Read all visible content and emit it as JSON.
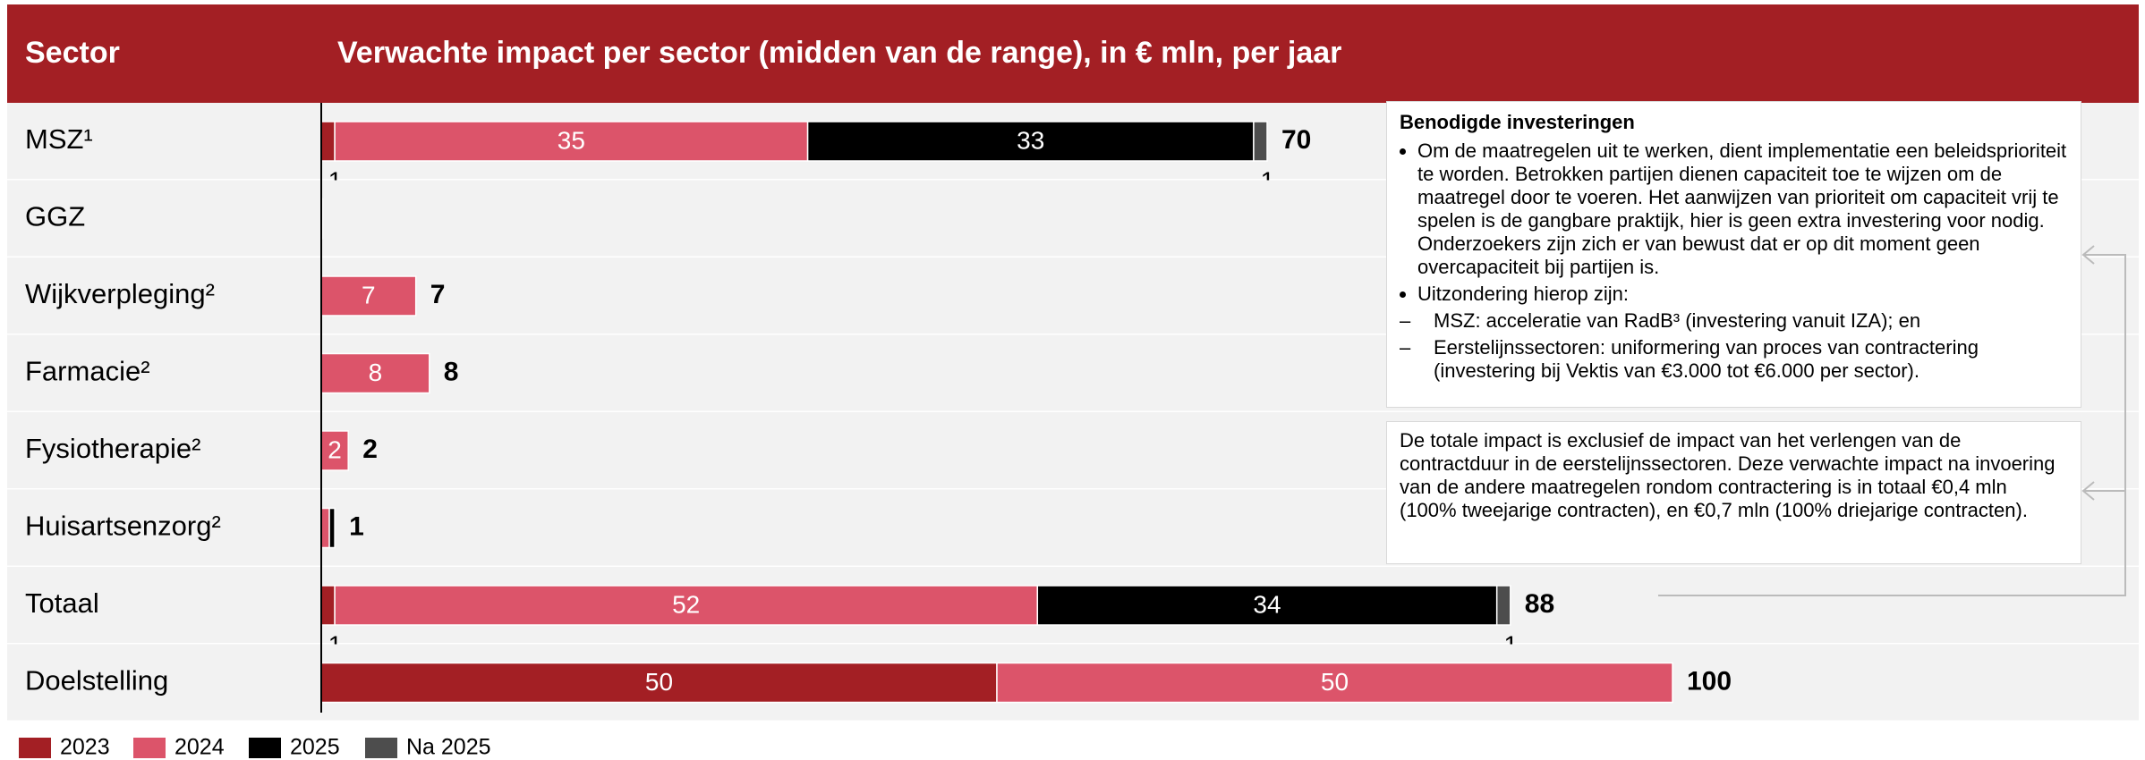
{
  "chart_data": {
    "type": "bar",
    "orientation": "horizontal",
    "stacked": true,
    "category_header": "Sector",
    "title": "Verwachte impact per sector (midden van de range), in € mln, per jaar",
    "categories": [
      "MSZ¹",
      "GGZ",
      "Wijkverpleging²",
      "Farmacie²",
      "Fysiotherapie²",
      "Huisartsenzorg²",
      "Totaal",
      "Doelstelling"
    ],
    "series": [
      {
        "name": "2023",
        "color": "#a31f24",
        "values": [
          1,
          0.1,
          0,
          0,
          0,
          0,
          1,
          50
        ]
      },
      {
        "name": "2024",
        "color": "#dc546a",
        "values": [
          35,
          0,
          7,
          8,
          2,
          0.6,
          52,
          50
        ]
      },
      {
        "name": "2025",
        "color": "#000000",
        "values": [
          33,
          0,
          0,
          0,
          0,
          0.4,
          34,
          0
        ]
      },
      {
        "name": "Na 2025",
        "color": "#4d4d4d",
        "values": [
          1,
          0,
          0,
          0,
          0,
          0,
          1,
          0
        ]
      }
    ],
    "totals": [
      70,
      null,
      7,
      8,
      2,
      1,
      88,
      100
    ],
    "xlim": [
      0,
      100
    ],
    "legend": "bottom-left"
  },
  "investments": {
    "title": "Benodigde investeringen",
    "bullets": [
      "Om de maatregelen uit te werken, dient implementatie een beleidsprioriteit te worden. Betrokken partijen dienen capaciteit toe te wijzen om de maatregel door te voeren. Het aanwijzen van prioriteit om capaciteit vrij te spelen is de gangbare praktijk, hier is geen extra investering voor nodig. Onderzoekers zijn zich er van bewust dat er op dit moment geen overcapaciteit bij partijen is.",
      "Uitzondering hierop zijn:"
    ],
    "sub_bullets": [
      "MSZ: acceleratie van RadB³ (investering vanuit IZA); en",
      "Eerstelijnssectoren: uniformering van proces van contractering (investering bij Vektis van €3.000 tot €6.000 per sector)."
    ]
  },
  "note": "De totale impact is exclusief de impact van het verlengen van de contractduur in de eerstelijnssectoren. Deze verwachte impact na invoering van de andere maatregelen rondom contractering is in totaal €0,4 mln (100% tweejarige contracten), en €0,7 mln (100% driejarige contracten)."
}
